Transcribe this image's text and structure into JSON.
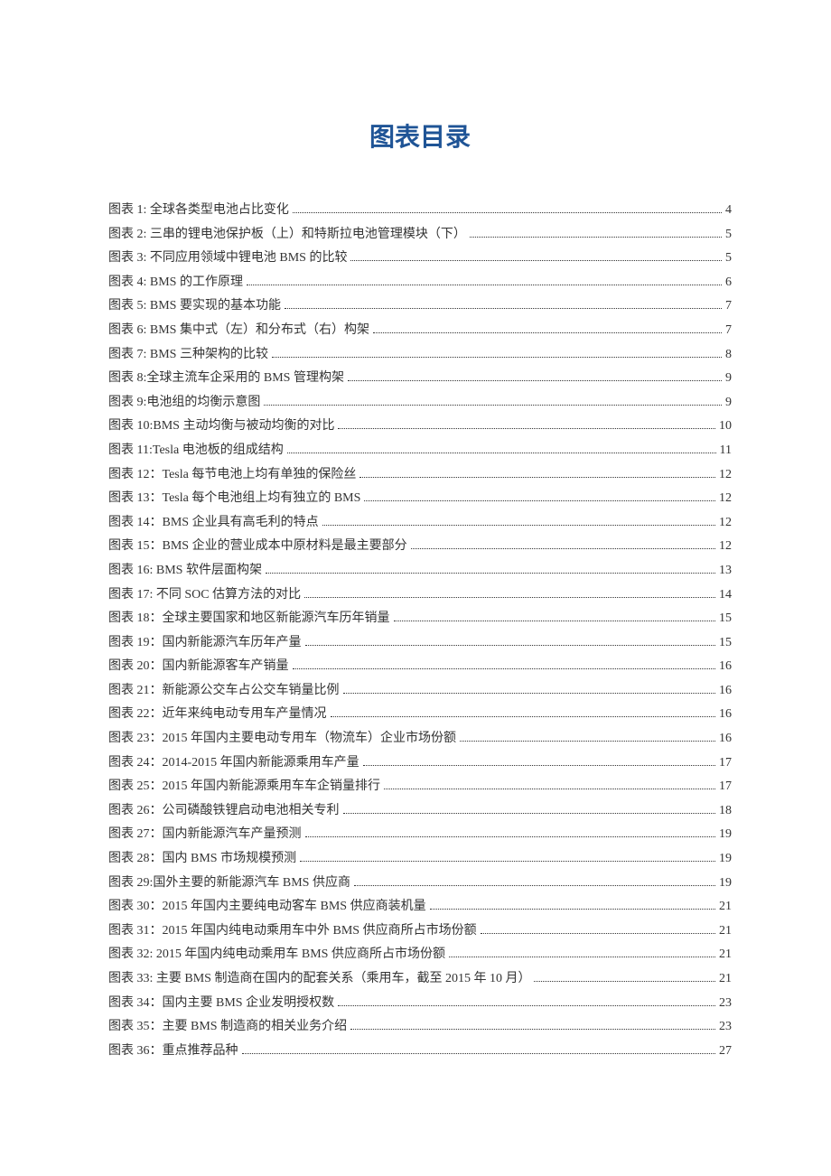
{
  "title": "图表目录",
  "title_color": "#1f5496",
  "title_fontsize": 28,
  "entry_fontsize": 14,
  "text_color": "#333333",
  "dot_color": "#333333",
  "background_color": "#ffffff",
  "entries": [
    {
      "label": "图表 1: 全球各类型电池占比变化",
      "page": "4"
    },
    {
      "label": "图表 2: 三串的锂电池保护板（上）和特斯拉电池管理模块（下）",
      "page": "5"
    },
    {
      "label": "图表 3: 不同应用领域中锂电池 BMS 的比较",
      "page": "5"
    },
    {
      "label": "图表 4: BMS 的工作原理",
      "page": "6"
    },
    {
      "label": "图表 5: BMS 要实现的基本功能",
      "page": "7"
    },
    {
      "label": "图表 6: BMS 集中式（左）和分布式（右）构架",
      "page": "7"
    },
    {
      "label": "图表 7: BMS 三种架构的比较",
      "page": "8"
    },
    {
      "label": "图表 8:全球主流车企采用的 BMS 管理构架",
      "page": "9"
    },
    {
      "label": "图表 9:电池组的均衡示意图",
      "page": "9"
    },
    {
      "label": "图表 10:BMS 主动均衡与被动均衡的对比",
      "page": "10"
    },
    {
      "label": "图表 11:Tesla 电池板的组成结构",
      "page": "11"
    },
    {
      "label": "图表 12：Tesla 每节电池上均有单独的保险丝",
      "page": "12"
    },
    {
      "label": "图表 13：Tesla 每个电池组上均有独立的 BMS",
      "page": "12"
    },
    {
      "label": "图表 14：BMS 企业具有高毛利的特点",
      "page": "12"
    },
    {
      "label": "图表 15：BMS 企业的营业成本中原材料是最主要部分",
      "page": "12"
    },
    {
      "label": "图表 16: BMS 软件层面构架",
      "page": "13"
    },
    {
      "label": "图表 17: 不同 SOC 估算方法的对比",
      "page": "14"
    },
    {
      "label": "图表 18：全球主要国家和地区新能源汽车历年销量",
      "page": "15"
    },
    {
      "label": "图表 19：国内新能源汽车历年产量",
      "page": "15"
    },
    {
      "label": "图表 20：国内新能源客车产销量",
      "page": "16"
    },
    {
      "label": "图表 21：新能源公交车占公交车销量比例",
      "page": "16"
    },
    {
      "label": "图表 22：近年来纯电动专用车产量情况",
      "page": "16"
    },
    {
      "label": "图表 23：2015 年国内主要电动专用车（物流车）企业市场份额",
      "page": "16"
    },
    {
      "label": "图表 24：2014-2015 年国内新能源乘用车产量",
      "page": "17"
    },
    {
      "label": "图表 25：2015 年国内新能源乘用车车企销量排行",
      "page": "17"
    },
    {
      "label": "图表 26：公司磷酸铁锂启动电池相关专利",
      "page": "18"
    },
    {
      "label": "图表 27：国内新能源汽车产量预测",
      "page": "19"
    },
    {
      "label": "图表 28：国内 BMS 市场规模预测",
      "page": "19"
    },
    {
      "label": "图表 29:国外主要的新能源汽车 BMS 供应商",
      "page": "19"
    },
    {
      "label": "图表 30：2015 年国内主要纯电动客车 BMS 供应商装机量",
      "page": "21"
    },
    {
      "label": "图表 31：2015 年国内纯电动乘用车中外 BMS 供应商所占市场份额",
      "page": "21"
    },
    {
      "label": "图表 32: 2015 年国内纯电动乘用车 BMS 供应商所占市场份额",
      "page": "21"
    },
    {
      "label": "图表 33: 主要 BMS 制造商在国内的配套关系（乘用车，截至 2015 年 10 月）",
      "page": "21"
    },
    {
      "label": "图表 34：国内主要 BMS 企业发明授权数",
      "page": "23"
    },
    {
      "label": "图表 35：主要 BMS 制造商的相关业务介绍",
      "page": "23"
    },
    {
      "label": "图表  36：重点推荐品种",
      "page": "27"
    }
  ]
}
